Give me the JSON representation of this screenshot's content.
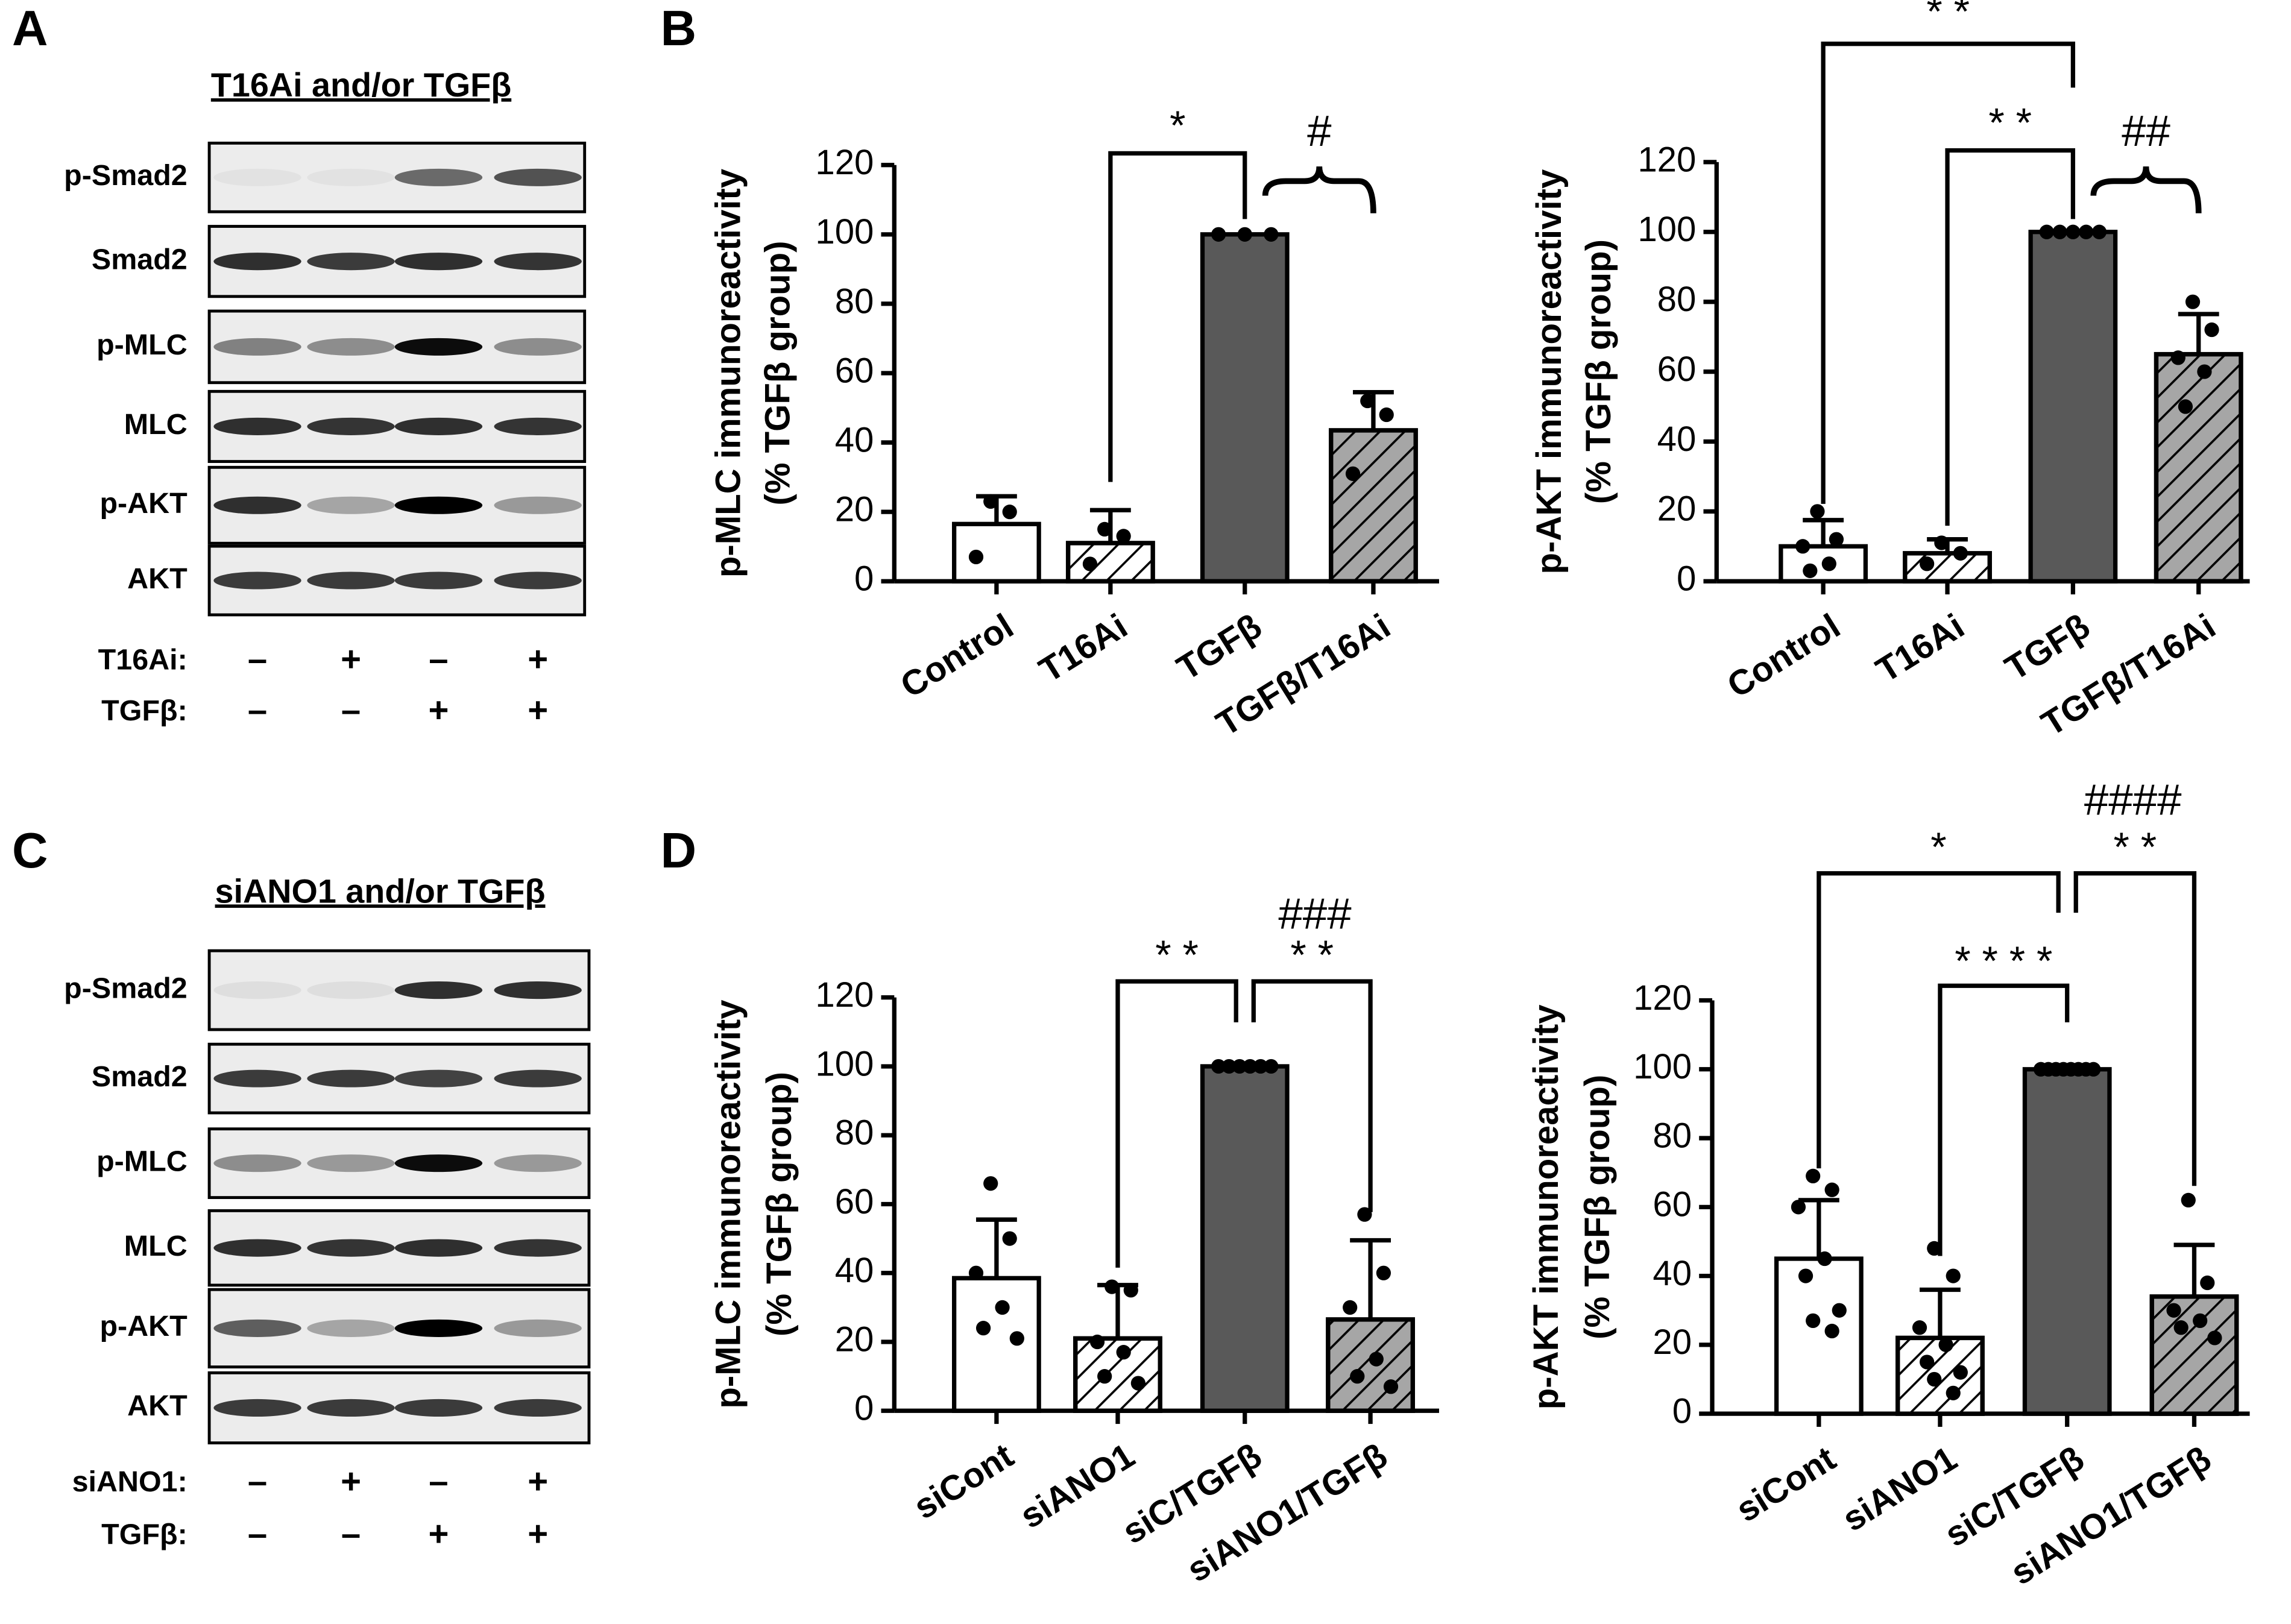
{
  "panel_labels": [
    "A",
    "B",
    "C",
    "D"
  ],
  "blots": [
    {
      "title": "T16Ai and/or TGFβ",
      "rows": [
        "p-Smad2",
        "Smad2",
        "p-MLC",
        "MLC",
        "p-AKT",
        "AKT"
      ],
      "conditions": [
        {
          "name": "T16Ai:",
          "signs": [
            "–",
            "+",
            "–",
            "+"
          ]
        },
        {
          "name": "TGFβ:",
          "signs": [
            "–",
            "–",
            "+",
            "+"
          ]
        }
      ]
    },
    {
      "title": "siANO1 and/or TGFβ",
      "rows": [
        "p-Smad2",
        "Smad2",
        "p-MLC",
        "MLC",
        "p-AKT",
        "AKT"
      ],
      "conditions": [
        {
          "name": "siANO1:",
          "signs": [
            "–",
            "+",
            "–",
            "+"
          ]
        },
        {
          "name": "TGFβ:",
          "signs": [
            "–",
            "–",
            "+",
            "+"
          ]
        }
      ]
    }
  ],
  "chart_data": [
    {
      "type": "bar",
      "y_label": [
        "p-MLC immunoreactivity",
        "(% TGFβ group)"
      ],
      "categories": [
        "Control",
        "T16Ai",
        "TGFβ",
        "TGFβ/T16Ai"
      ],
      "values": [
        16.5,
        11,
        100,
        43.5
      ],
      "errors": [
        8,
        9.5,
        0,
        11
      ],
      "points": [
        [
          23,
          20,
          7
        ],
        [
          15,
          13,
          5
        ],
        [
          100,
          100,
          100
        ],
        [
          52,
          48,
          31
        ]
      ],
      "colors": [
        "#ffffff",
        "#ffffff",
        "#595959",
        "#a6a6a6"
      ],
      "hatch": [
        false,
        true,
        false,
        true
      ],
      "ylim": [
        0,
        120
      ],
      "yticks": [
        0,
        20,
        40,
        60,
        80,
        100,
        120
      ],
      "annotations": [
        "*",
        "#"
      ]
    },
    {
      "type": "bar",
      "y_label": [
        "p-AKT immunoreactivity",
        "(% TGFβ group)"
      ],
      "categories": [
        "Control",
        "T16Ai",
        "TGFβ",
        "TGFβ/T16Ai"
      ],
      "values": [
        10,
        8,
        100,
        65
      ],
      "errors": [
        7.5,
        4,
        0,
        11.5
      ],
      "points": [
        [
          20,
          12,
          10,
          5,
          3
        ],
        [
          11,
          8,
          5
        ],
        [
          100,
          100,
          100,
          100,
          100
        ],
        [
          80,
          72,
          64,
          60,
          50
        ]
      ],
      "colors": [
        "#ffffff",
        "#ffffff",
        "#595959",
        "#a6a6a6"
      ],
      "hatch": [
        false,
        true,
        false,
        true
      ],
      "ylim": [
        0,
        120
      ],
      "yticks": [
        0,
        20,
        40,
        60,
        80,
        100,
        120
      ],
      "annotations": [
        "* *",
        "* *",
        "##"
      ]
    },
    {
      "type": "bar",
      "y_label": [
        "p-MLC immunoreactivity",
        "(% TGFβ group)"
      ],
      "categories": [
        "siCont",
        "siANO1",
        "siC/TGFβ",
        "siANO1/TGFβ"
      ],
      "values": [
        38.5,
        21,
        100,
        26.5
      ],
      "errors": [
        17,
        15.5,
        0,
        23
      ],
      "points": [
        [
          66,
          50,
          40,
          30,
          24,
          21
        ],
        [
          36,
          35,
          20,
          17,
          10,
          8
        ],
        [
          100,
          100,
          100,
          100,
          100,
          100
        ],
        [
          57,
          40,
          30,
          15,
          10,
          7
        ]
      ],
      "colors": [
        "#ffffff",
        "#ffffff",
        "#595959",
        "#a6a6a6"
      ],
      "hatch": [
        false,
        true,
        false,
        true
      ],
      "ylim": [
        0,
        120
      ],
      "yticks": [
        0,
        20,
        40,
        60,
        80,
        100,
        120
      ],
      "annotations": [
        "* *",
        "* *",
        "###"
      ]
    },
    {
      "type": "bar",
      "y_label": [
        "p-AKT immunoreactivity",
        "(% TGFβ group)"
      ],
      "categories": [
        "siCont",
        "siANO1",
        "siC/TGFβ",
        "siANO1/TGFβ"
      ],
      "values": [
        45,
        22,
        100,
        34
      ],
      "errors": [
        17,
        14,
        0,
        15
      ],
      "points": [
        [
          69,
          65,
          60,
          45,
          40,
          30,
          27,
          24
        ],
        [
          48,
          40,
          25,
          20,
          15,
          12,
          10,
          6
        ],
        [
          100,
          100,
          100,
          100,
          100,
          100,
          100,
          100
        ],
        [
          62,
          38,
          30,
          27,
          25,
          22
        ]
      ],
      "colors": [
        "#ffffff",
        "#ffffff",
        "#595959",
        "#a6a6a6"
      ],
      "hatch": [
        false,
        true,
        false,
        true
      ],
      "ylim": [
        0,
        120
      ],
      "yticks": [
        0,
        20,
        40,
        60,
        80,
        100,
        120
      ],
      "annotations": [
        "*",
        "* *",
        "* * * *",
        "####"
      ]
    }
  ]
}
